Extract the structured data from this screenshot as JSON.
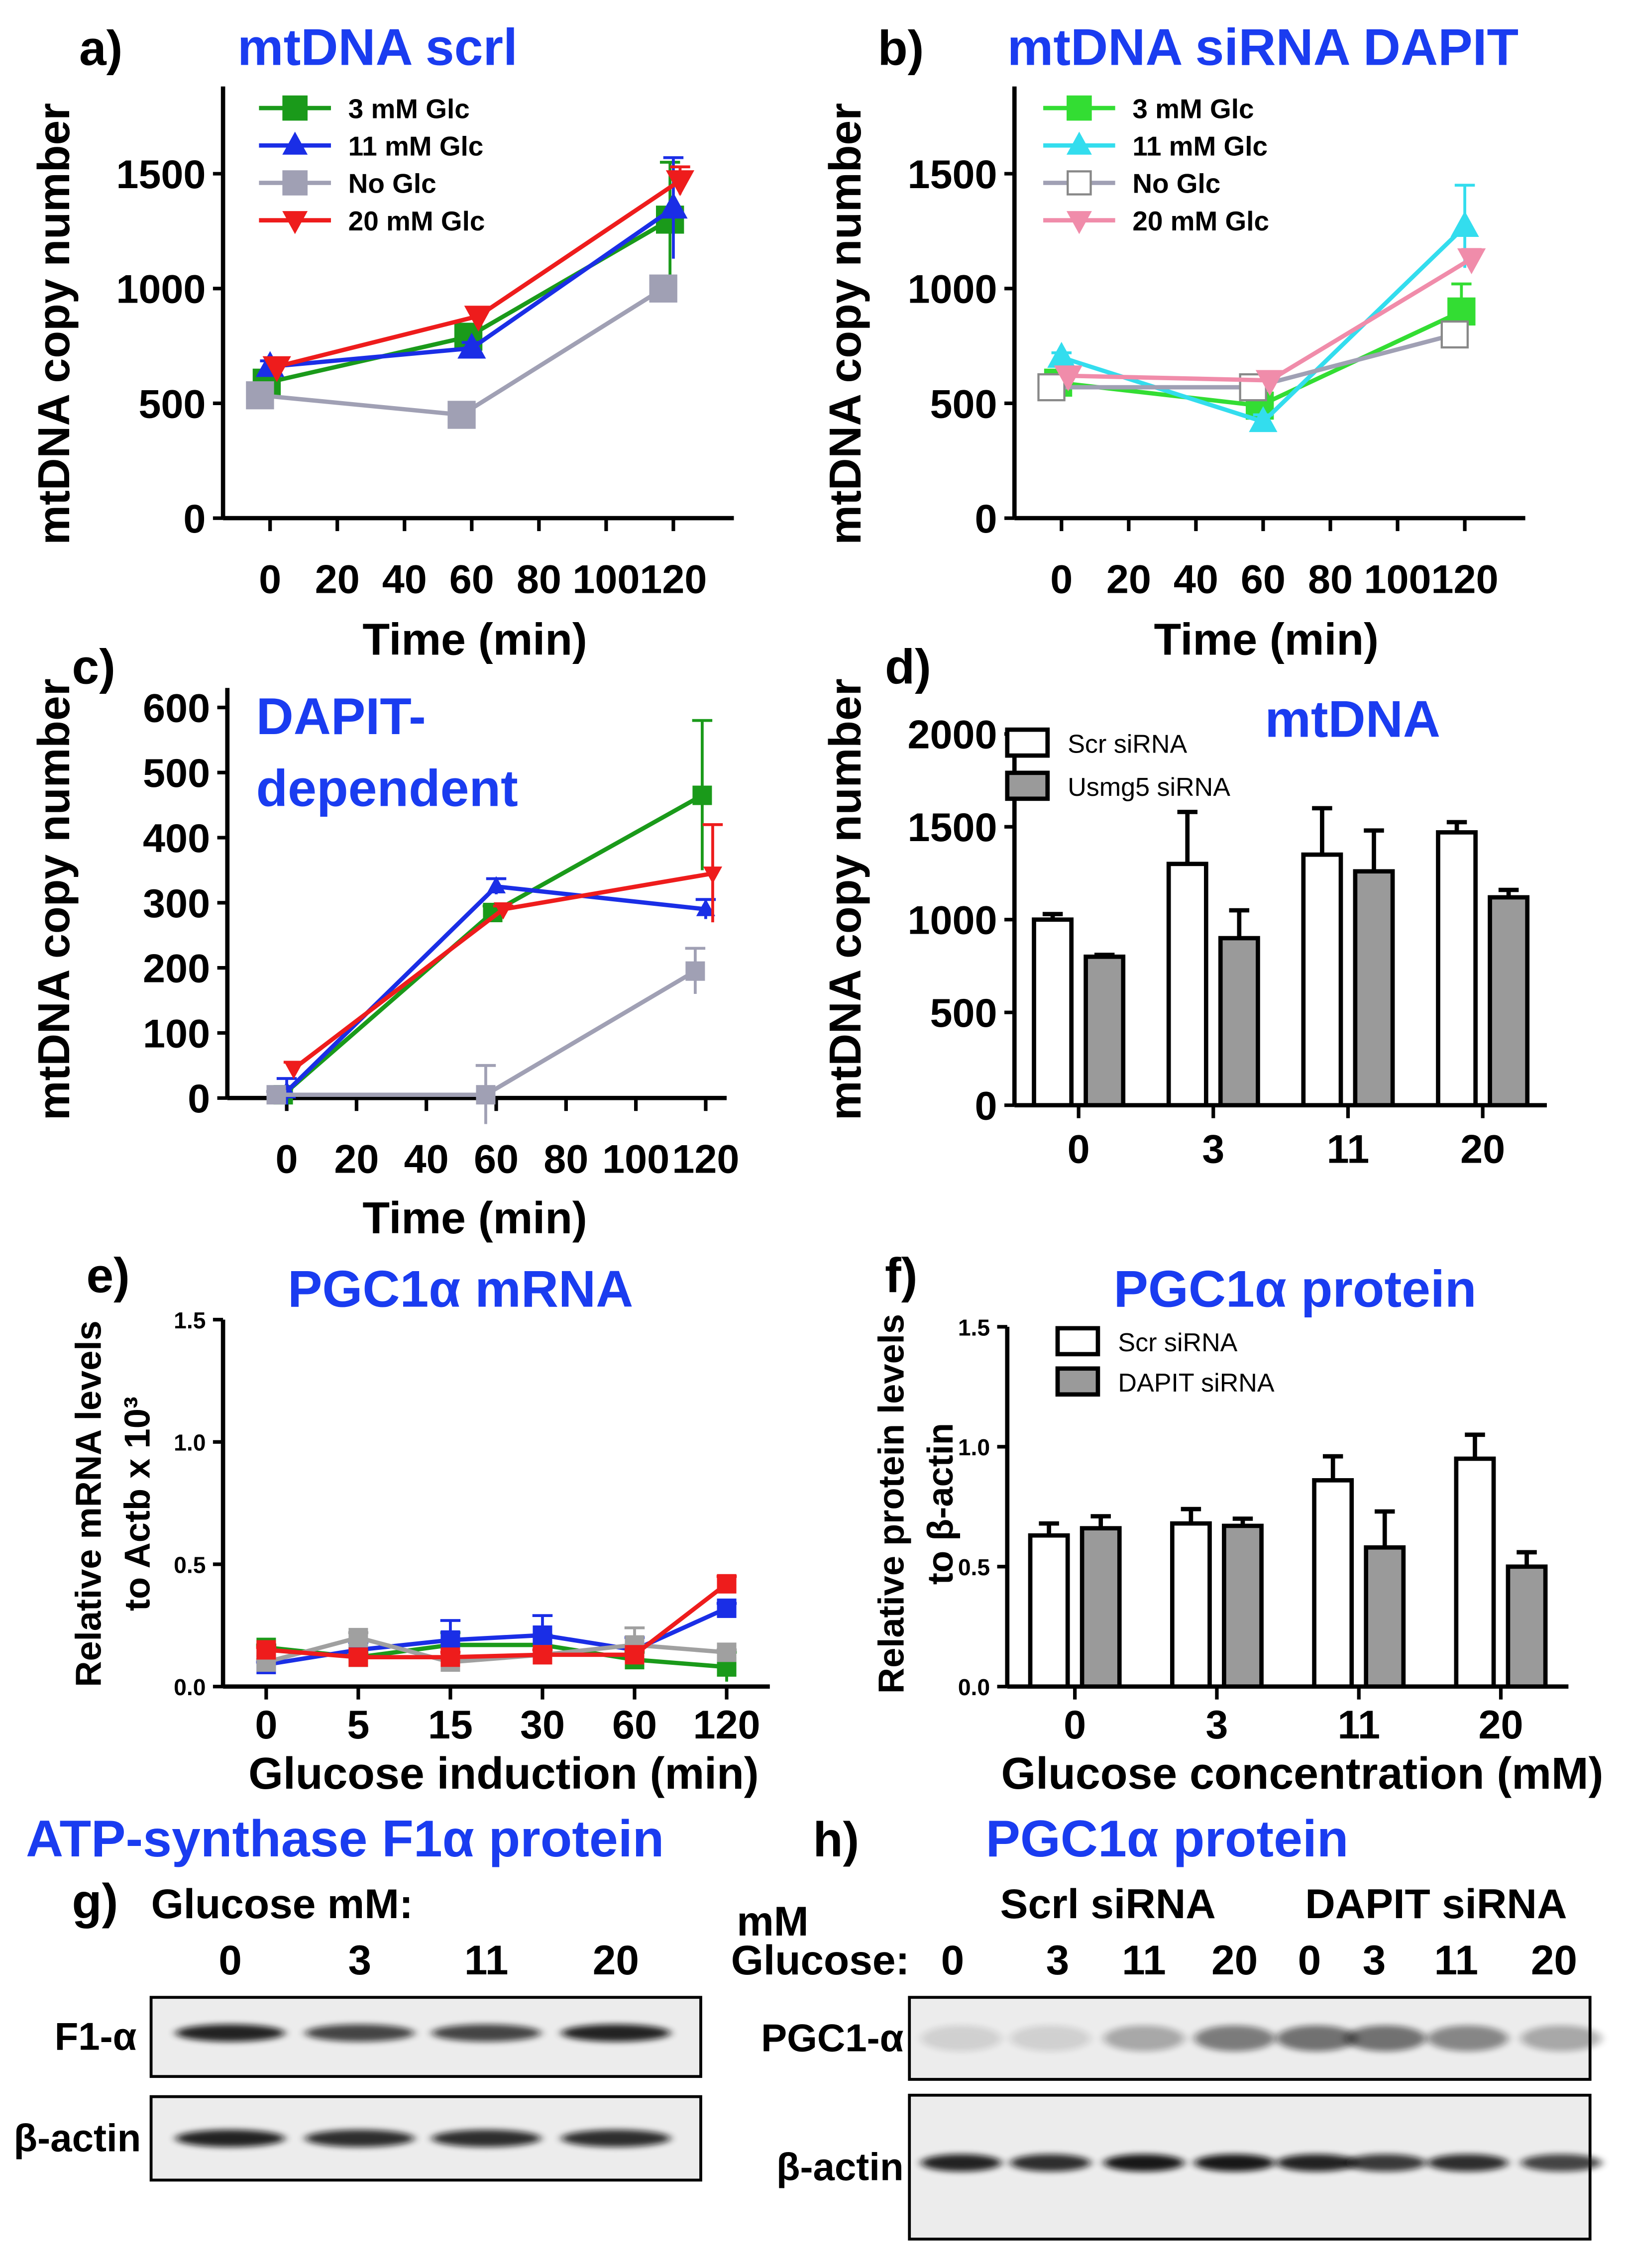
{
  "chart_data": [
    {
      "panel_label": "a)",
      "title": "mtDNA scrl",
      "type": "line",
      "xlabel": "Time (min)",
      "ylabel": "mtDNA copy number",
      "xticks": [
        0,
        20,
        40,
        60,
        80,
        100,
        120
      ],
      "yticks": [
        0,
        500,
        1000,
        1500
      ],
      "xlim": [
        -14,
        138
      ],
      "ylim": [
        0,
        1880
      ],
      "legend": "top-left",
      "series": [
        {
          "name": "3 mM Glc",
          "color": "#1a9a1a",
          "marker": "square",
          "x": [
            0,
            60,
            120
          ],
          "y": [
            590,
            790,
            1300
          ],
          "err": [
            30,
            30,
            250
          ]
        },
        {
          "name": "11 mM Glc",
          "color": "#1a2ee6",
          "marker": "triangle-up",
          "x": [
            0,
            60,
            120
          ],
          "y": [
            660,
            740,
            1350
          ],
          "err": [
            25,
            25,
            220
          ]
        },
        {
          "name": "No Glc",
          "color": "#a0a0b4",
          "marker": "square",
          "x": [
            0,
            60,
            120
          ],
          "y": [
            535,
            450,
            1000
          ],
          "err": [
            15,
            20,
            30
          ]
        },
        {
          "name": "20 mM Glc",
          "color": "#ee1c1c",
          "marker": "triangle-down",
          "x": [
            0,
            60,
            120
          ],
          "y": [
            660,
            880,
            1470
          ],
          "err": [
            20,
            20,
            60
          ]
        }
      ]
    },
    {
      "panel_label": "b)",
      "title": "mtDNA siRNA DAPIT",
      "type": "line",
      "xlabel": "Time (min)",
      "ylabel": "mtDNA copy number",
      "xticks": [
        0,
        20,
        40,
        60,
        80,
        100,
        120
      ],
      "yticks": [
        0,
        500,
        1000,
        1500
      ],
      "xlim": [
        -14,
        138
      ],
      "ylim": [
        0,
        1880
      ],
      "legend": "top-left",
      "series": [
        {
          "name": "3 mM Glc",
          "color": "#33dd33",
          "marker": "square",
          "x": [
            0,
            60,
            120
          ],
          "y": [
            590,
            490,
            900
          ],
          "err": [
            20,
            30,
            120
          ]
        },
        {
          "name": "11 mM Glc",
          "color": "#33ddee",
          "marker": "triangle-up",
          "x": [
            0,
            60,
            120
          ],
          "y": [
            700,
            420,
            1270
          ],
          "err": [
            20,
            30,
            180
          ]
        },
        {
          "name": "No Glc",
          "color": "#a0a0b4",
          "marker": "open-square",
          "x": [
            0,
            60,
            120
          ],
          "y": [
            570,
            570,
            800
          ],
          "err": [
            15,
            20,
            30
          ]
        },
        {
          "name": "20 mM Glc",
          "color": "#f08caa",
          "marker": "triangle-down",
          "x": [
            0,
            60,
            120
          ],
          "y": [
            620,
            600,
            1130
          ],
          "err": [
            15,
            20,
            40
          ]
        }
      ]
    },
    {
      "panel_label": "c)",
      "title_lines": [
        "DAPIT-",
        "dependent"
      ],
      "type": "line",
      "xlabel": "Time (min)",
      "ylabel": "mtDNA copy number",
      "xticks": [
        0,
        20,
        40,
        60,
        80,
        100,
        120
      ],
      "yticks": [
        0,
        100,
        200,
        300,
        400,
        500,
        600
      ],
      "xlim": [
        -17,
        126
      ],
      "ylim": [
        0,
        630
      ],
      "series": [
        {
          "color": "#1a9a1a",
          "marker": "square",
          "x": [
            0,
            60,
            120
          ],
          "y": [
            5,
            285,
            465
          ],
          "err": [
            10,
            10,
            115
          ]
        },
        {
          "color": "#1a2ee6",
          "marker": "triangle-up",
          "x": [
            0,
            60,
            120
          ],
          "y": [
            10,
            325,
            290
          ],
          "err": [
            20,
            12,
            15
          ]
        },
        {
          "color": "#a0a0b4",
          "marker": "square",
          "x": [
            0,
            60,
            120
          ],
          "y": [
            5,
            5,
            195
          ],
          "err": [
            5,
            45,
            35
          ]
        },
        {
          "color": "#ee1c1c",
          "marker": "triangle-down",
          "x": [
            0,
            60,
            120
          ],
          "y": [
            45,
            290,
            345
          ],
          "err": [
            10,
            5,
            75
          ]
        }
      ]
    },
    {
      "panel_label": "d)",
      "title": "mtDNA",
      "type": "bar",
      "xlabel": "",
      "ylabel": "mtDNA copy number",
      "categories": [
        "0",
        "3",
        "11",
        "20"
      ],
      "yticks": [
        0,
        500,
        1000,
        1500,
        2000
      ],
      "ylim": [
        0,
        2000
      ],
      "legend": "top-left",
      "series": [
        {
          "name": "Scr siRNA",
          "color": "#ffffff",
          "values": [
            1000,
            1300,
            1350,
            1470
          ],
          "err": [
            30,
            280,
            250,
            55
          ]
        },
        {
          "name": "Usmg5 siRNA",
          "color": "#9a9a9a",
          "values": [
            800,
            900,
            1260,
            1120
          ],
          "err": [
            10,
            150,
            220,
            40
          ]
        }
      ]
    },
    {
      "panel_label": "e)",
      "title": "PGC1α mRNA",
      "type": "line",
      "xlabel": "Glucose induction (min)",
      "ylabel_lines": [
        "Relative mRNA levels",
        "to Actb x 10³"
      ],
      "categories": [
        "0",
        "5",
        "15",
        "30",
        "60",
        "120"
      ],
      "yticks": [
        "0.0",
        "0.5",
        "1.0",
        "1.5"
      ],
      "ylim": [
        0,
        1.5
      ],
      "series": [
        {
          "color": "#1a9a1a",
          "marker": "square",
          "y": [
            0.16,
            0.12,
            0.17,
            0.17,
            0.11,
            0.08
          ],
          "err": [
            0.01,
            0.02,
            0.05,
            0.04,
            0.03,
            0.06
          ]
        },
        {
          "color": "#1a2ee6",
          "marker": "square",
          "y": [
            0.09,
            0.15,
            0.19,
            0.21,
            0.15,
            0.32
          ],
          "err": [
            0.01,
            0.03,
            0.08,
            0.08,
            0.05,
            0.02
          ]
        },
        {
          "color": "#a0a0a0",
          "marker": "square",
          "y": [
            0.1,
            0.2,
            0.1,
            0.13,
            0.17,
            0.14
          ],
          "err": [
            0.01,
            0.02,
            0.02,
            0.02,
            0.07,
            0.01
          ]
        },
        {
          "color": "#ee1c1c",
          "marker": "square",
          "y": [
            0.15,
            0.12,
            0.12,
            0.13,
            0.13,
            0.42
          ],
          "err": [
            0.01,
            0.01,
            0.02,
            0.02,
            0.02,
            0.03
          ]
        }
      ]
    },
    {
      "panel_label": "f)",
      "title": "PGC1α  protein",
      "type": "bar",
      "xlabel": "Glucose concentration (mM)",
      "ylabel_lines": [
        "Relative protein levels",
        "to β-actin"
      ],
      "categories": [
        "0",
        "3",
        "11",
        "20"
      ],
      "yticks": [
        "0.0",
        "0.5",
        "1.0",
        "1.5"
      ],
      "ylim": [
        0,
        1.5
      ],
      "legend": "top-left",
      "series": [
        {
          "name": "Scr siRNA",
          "color": "#ffffff",
          "values": [
            0.63,
            0.68,
            0.86,
            0.95
          ],
          "err": [
            0.05,
            0.06,
            0.1,
            0.1
          ]
        },
        {
          "name": "DAPIT siRNA",
          "color": "#9a9a9a",
          "values": [
            0.66,
            0.67,
            0.58,
            0.5
          ],
          "err": [
            0.05,
            0.03,
            0.15,
            0.06
          ]
        }
      ]
    }
  ],
  "blots": {
    "g": {
      "title": "ATP-synthase F1α  protein",
      "panel_label": "g)",
      "header": "Glucose mM:",
      "lanes": [
        "0",
        "3",
        "11",
        "20"
      ],
      "rows": [
        {
          "label": "F1-α",
          "intensity": [
            0.9,
            0.75,
            0.75,
            0.9
          ]
        },
        {
          "label": "β-actin",
          "intensity": [
            0.9,
            0.85,
            0.85,
            0.85
          ]
        }
      ]
    },
    "h": {
      "title": "PGC1α  protein",
      "panel_label": "h)",
      "unit": "mM",
      "header": "Glucose:",
      "groups": [
        "Scrl siRNA",
        "DAPIT siRNA"
      ],
      "lanes": [
        "0",
        "3",
        "11",
        "20",
        "0",
        "3",
        "11",
        "20"
      ],
      "rows": [
        {
          "label": "PGC1-α",
          "intensity": [
            0.12,
            0.12,
            0.3,
            0.5,
            0.55,
            0.55,
            0.45,
            0.3
          ]
        },
        {
          "label": "β-actin",
          "intensity": [
            0.9,
            0.85,
            0.95,
            0.95,
            0.9,
            0.8,
            0.85,
            0.75
          ]
        }
      ]
    }
  }
}
